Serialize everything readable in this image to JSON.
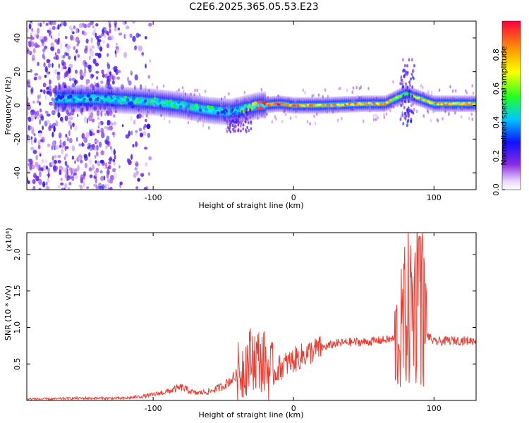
{
  "title": "C2E6.2025.365.05.53.E23",
  "chart_data": [
    {
      "type": "heatmap",
      "xlabel": "Height of straight line (km)",
      "ylabel": "Frequency (Hz)",
      "xlim": [
        -190,
        130
      ],
      "ylim": [
        -50,
        50
      ],
      "xticks": [
        -100,
        0,
        100
      ],
      "yticks": [
        -40,
        -20,
        0,
        20,
        40
      ],
      "colorbar": {
        "label": "Normalized spectral amplitude",
        "range": [
          0,
          1
        ],
        "ticks": [
          0.0,
          0.2,
          0.4,
          0.6,
          0.8
        ]
      },
      "ridge": [
        {
          "x": -165,
          "f": 4,
          "amp": 0.35
        },
        {
          "x": -155,
          "f": 4,
          "amp": 0.35
        },
        {
          "x": -140,
          "f": 4,
          "amp": 0.35
        },
        {
          "x": -120,
          "f": 3,
          "amp": 0.4
        },
        {
          "x": -100,
          "f": 2,
          "amp": 0.45
        },
        {
          "x": -80,
          "f": 0,
          "amp": 0.45
        },
        {
          "x": -60,
          "f": -3,
          "amp": 0.45
        },
        {
          "x": -45,
          "f": -4,
          "amp": 0.35
        },
        {
          "x": -35,
          "f": -2,
          "amp": 0.5
        },
        {
          "x": -25,
          "f": 0,
          "amp": 0.9
        },
        {
          "x": -10,
          "f": 1,
          "amp": 0.9
        },
        {
          "x": 0,
          "f": 0,
          "amp": 0.85
        },
        {
          "x": 20,
          "f": 0,
          "amp": 0.75
        },
        {
          "x": 50,
          "f": 1,
          "amp": 0.8
        },
        {
          "x": 65,
          "f": 1,
          "amp": 0.75
        },
        {
          "x": 80,
          "f": 7,
          "amp": 0.6
        },
        {
          "x": 100,
          "f": 1,
          "amp": 0.8
        },
        {
          "x": 120,
          "f": 1,
          "amp": 0.75
        },
        {
          "x": 130,
          "f": 1,
          "amp": 0.75
        }
      ]
    },
    {
      "type": "line",
      "xlabel": "Height of straight line (km)",
      "ylabel": "SNR (10 * v/v)",
      "yscale_label": "(x10⁴)",
      "xlim": [
        -190,
        130
      ],
      "ylim": [
        0,
        2.3
      ],
      "xticks": [
        -100,
        0,
        100
      ],
      "yticks": [
        0.5,
        1.0,
        1.5,
        2.0
      ],
      "color": "#ee3a2f",
      "series": [
        {
          "x": [
            -190,
            -170,
            -160,
            -150,
            -130,
            -120,
            -110,
            -100,
            -90,
            -80,
            -70,
            -60,
            -50,
            -40,
            -30,
            -22,
            -15,
            -10,
            -5,
            0,
            5,
            10,
            20,
            30,
            40,
            50,
            60,
            70,
            75,
            80,
            85,
            90,
            95,
            100,
            110,
            120,
            130
          ],
          "y": [
            0.02,
            0.02,
            0.03,
            0.03,
            0.03,
            0.03,
            0.05,
            0.08,
            0.12,
            0.18,
            0.1,
            0.12,
            0.2,
            0.35,
            0.6,
            0.55,
            0.35,
            0.45,
            0.5,
            0.55,
            0.6,
            0.65,
            0.72,
            0.78,
            0.8,
            0.8,
            0.82,
            0.84,
            0.83,
            1.2,
            1.3,
            1.5,
            0.9,
            0.8,
            0.82,
            0.82,
            0.82
          ]
        }
      ]
    }
  ]
}
